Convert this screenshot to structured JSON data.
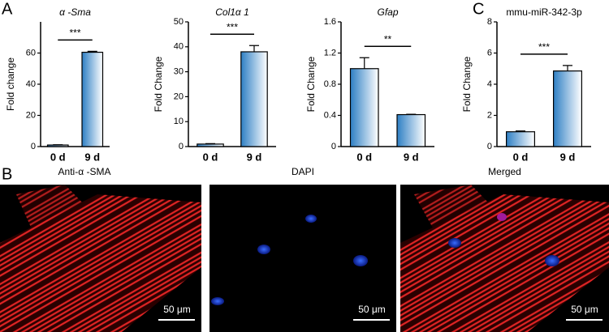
{
  "panel_labels": [
    "A",
    "B",
    "C"
  ],
  "chart_data": [
    {
      "type": "bar",
      "title": "α -Sma",
      "title_italic": true,
      "ylabel": "Fold change",
      "categories": [
        "0 d",
        "9 d"
      ],
      "values": [
        1,
        60.5
      ],
      "errors": [
        0.2,
        0.6
      ],
      "ylim": [
        0,
        80
      ],
      "yticks": [
        0,
        20,
        40,
        60
      ],
      "color": "#2e7fc4",
      "significance": "***"
    },
    {
      "type": "bar",
      "title": "Col1α 1",
      "title_italic": true,
      "ylabel": "Fold Change",
      "categories": [
        "0 d",
        "9 d"
      ],
      "values": [
        1,
        38
      ],
      "errors": [
        0.2,
        2.5
      ],
      "ylim": [
        0,
        50
      ],
      "yticks": [
        0,
        10,
        20,
        30,
        40,
        50
      ],
      "color": "#2e7fc4",
      "significance": "***"
    },
    {
      "type": "bar",
      "title": "Gfap",
      "title_italic": true,
      "ylabel": "Fold Change",
      "categories": [
        "0 d",
        "9 d"
      ],
      "values": [
        1.0,
        0.41
      ],
      "errors": [
        0.14,
        0.005
      ],
      "ylim": [
        0,
        1.6
      ],
      "yticks": [
        0,
        0.4,
        0.8,
        1.2,
        1.6
      ],
      "color": "#2e7fc4",
      "significance": "**"
    },
    {
      "type": "bar",
      "title": "mmu-miR-342-3p",
      "title_italic": false,
      "ylabel": "Fold Change",
      "categories": [
        "0 d",
        "9 d"
      ],
      "values": [
        0.95,
        4.85
      ],
      "errors": [
        0.05,
        0.35
      ],
      "ylim": [
        0,
        8
      ],
      "yticks": [
        0,
        2,
        4,
        6,
        8
      ],
      "color": "#2e7fc4",
      "significance": "***"
    }
  ],
  "images": [
    {
      "title": "Anti-α -SMA",
      "scale_bar": "50 μm"
    },
    {
      "title": "DAPI",
      "scale_bar": "50 μm"
    },
    {
      "title": "Merged",
      "scale_bar": "50 μm"
    }
  ]
}
